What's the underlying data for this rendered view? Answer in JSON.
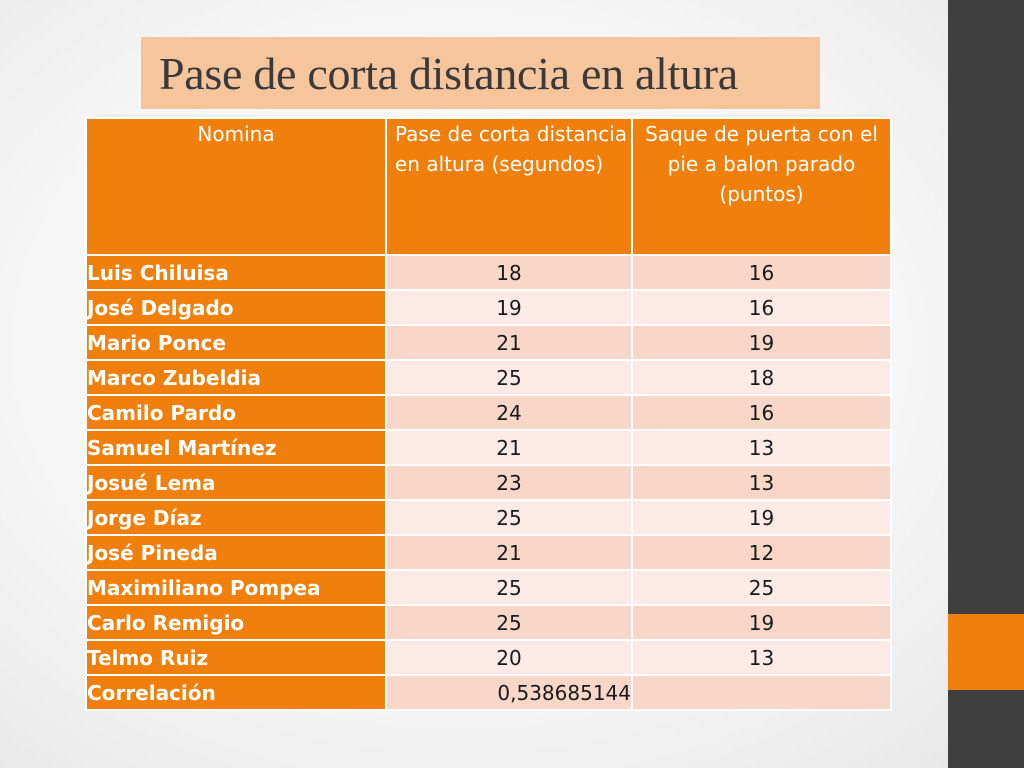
{
  "slide": {
    "title": "Pase de corta distancia en altura"
  },
  "colors": {
    "accent": "#f07f0c",
    "sidebar": "#3f3f3f",
    "title_box": "#f7c59c",
    "row_odd": "#f8d7c9",
    "row_even": "#fcebe5"
  },
  "table": {
    "headers": [
      "Nomina",
      "Pase de corta distancia en altura (segundos)",
      "Saque de puerta con el pie  a balon parado  (puntos)"
    ],
    "rows": [
      {
        "name": "Luis Chiluisa",
        "pase": "18",
        "saque": "16"
      },
      {
        "name": "José Delgado",
        "pase": "19",
        "saque": "16"
      },
      {
        "name": "Mario Ponce",
        "pase": "21",
        "saque": "19"
      },
      {
        "name": "Marco Zubeldia",
        "pase": "25",
        "saque": "18"
      },
      {
        "name": "Camilo Pardo",
        "pase": "24",
        "saque": "16"
      },
      {
        "name": "Samuel Martínez",
        "pase": "21",
        "saque": "13"
      },
      {
        "name": "Josué Lema",
        "pase": "23",
        "saque": "13"
      },
      {
        "name": "Jorge Díaz",
        "pase": "25",
        "saque": "19"
      },
      {
        "name": "José Pineda",
        "pase": "21",
        "saque": "12"
      },
      {
        "name": "Maximiliano Pompea",
        "pase": "25",
        "saque": "25"
      },
      {
        "name": "Carlo Remigio",
        "pase": "25",
        "saque": "19"
      },
      {
        "name": "Telmo Ruiz",
        "pase": "20",
        "saque": "13"
      }
    ],
    "footer": {
      "label": "Correlación",
      "value": "0,538685144",
      "empty": ""
    }
  }
}
